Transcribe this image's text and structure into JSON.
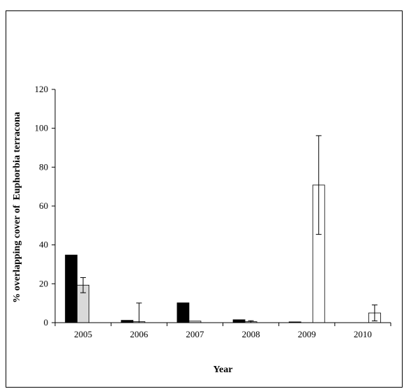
{
  "chart_data": {
    "type": "bar",
    "title": "",
    "xlabel": "Year",
    "ylabel": "% overlapping cover of  Euphorbia terracona",
    "categories": [
      "2005",
      "2006",
      "2007",
      "2008",
      "2009",
      "2010"
    ],
    "ylim": [
      0,
      120
    ],
    "yticks": [
      0,
      20,
      40,
      60,
      80,
      100,
      120
    ],
    "grid": false,
    "legend": "none",
    "series": [
      {
        "color": "#000000",
        "values": [
          34.8,
          1.2,
          10.2,
          1.5,
          0.4,
          0
        ],
        "error": [
          0,
          0,
          0,
          0,
          0,
          0
        ]
      },
      {
        "color": "#d9d9d9",
        "values": [
          19.3,
          0.5,
          0.8,
          0.5,
          0,
          0
        ],
        "error": [
          3.9,
          9.6,
          0,
          0.5,
          0,
          0
        ]
      },
      {
        "color": "#ffffff",
        "values": [
          0,
          0,
          0,
          0,
          70.8,
          5.0
        ],
        "error": [
          0,
          0,
          0,
          0,
          25.4,
          4.1
        ]
      }
    ]
  }
}
